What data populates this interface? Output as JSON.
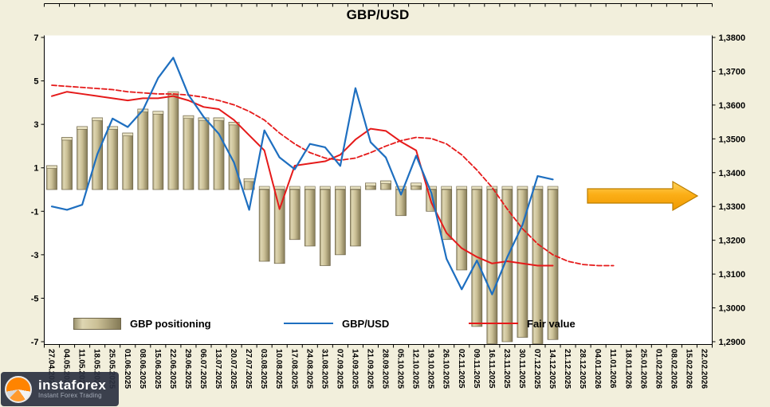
{
  "title": "GBP/USD",
  "legend": {
    "positioning": "GBP positioning",
    "price": "GBP/USD",
    "fair": "Fair value"
  },
  "watermark": {
    "brand": "instaforex",
    "tagline": "Instant Forex Trading"
  },
  "axes": {
    "left_ticks": [
      "7",
      "5",
      "3",
      "1",
      "-1",
      "-3",
      "-5",
      "-7"
    ],
    "right_ticks": [
      "1,3800",
      "1,3700",
      "1,3600",
      "1,3500",
      "1,3400",
      "1,3300",
      "1,3200",
      "1,3100",
      "1,3000",
      "1,2900"
    ]
  },
  "colors": {
    "background": "#F2EFDC",
    "plot": "#FFFFFF",
    "bar": "#CBC096",
    "bar_edge": "#6E6549",
    "price_line": "#1E6FC0",
    "fair_line": "#E51A1A",
    "arrow_fill_top": "#FFD45C",
    "arrow_fill_bottom": "#F09A00",
    "arrow_border": "#BA7D00"
  },
  "chart_data": {
    "type": "combo",
    "title": "GBP/USD",
    "categories": [
      "27.04.2025",
      "04.05.2025",
      "11.05.2025",
      "18.05.2025",
      "25.05.2025",
      "01.06.2025",
      "08.06.2025",
      "15.06.2025",
      "22.06.2025",
      "29.06.2025",
      "06.07.2025",
      "13.07.2025",
      "20.07.2025",
      "27.07.2025",
      "03.08.2025",
      "10.08.2025",
      "17.08.2025",
      "24.08.2025",
      "31.08.2025",
      "07.09.2025",
      "14.09.2025",
      "21.09.2025",
      "28.09.2025",
      "05.10.2025",
      "12.10.2025",
      "19.10.2025",
      "26.10.2025",
      "02.11.2025",
      "09.11.2025",
      "16.11.2025",
      "23.11.2025",
      "30.11.2025",
      "07.12.2025",
      "14.12.2025",
      "21.12.2025",
      "28.12.2025",
      "04.01.2026",
      "11.01.2026",
      "18.01.2026",
      "25.01.2026",
      "01.02.2026",
      "08.02.2026",
      "15.02.2026",
      "22.02.2026"
    ],
    "left_axis": {
      "min": -7,
      "max": 7,
      "tick_step": 2
    },
    "right_axis": {
      "min": 1.29,
      "max": 1.38,
      "tick_step": 0.01
    },
    "legend_position": "bottom-inside",
    "grid": false,
    "series": [
      {
        "name": "GBP positioning",
        "type": "bar",
        "axis": "left",
        "values": [
          1.1,
          2.4,
          2.9,
          3.3,
          2.9,
          2.6,
          3.7,
          3.6,
          4.5,
          3.4,
          3.3,
          3.3,
          3.1,
          0.5,
          -3.3,
          -3.4,
          -2.3,
          -2.6,
          -3.5,
          -3.0,
          -2.6,
          0.3,
          0.4,
          -1.2,
          0.3,
          -1.0,
          -2.3,
          -3.7,
          -6.3,
          -7.2,
          -7.0,
          -6.8,
          -7.1,
          -6.9,
          null,
          null,
          null,
          null,
          null,
          null,
          null,
          null,
          null,
          null
        ]
      },
      {
        "name": "GBP/USD",
        "type": "line",
        "axis": "right",
        "values": [
          1.33,
          1.329,
          1.3305,
          1.3455,
          1.356,
          1.3535,
          1.3585,
          1.368,
          1.374,
          1.363,
          1.3565,
          1.3515,
          1.343,
          1.329,
          1.3525,
          1.3445,
          1.341,
          1.3485,
          1.3475,
          1.342,
          1.365,
          1.349,
          1.3445,
          1.3335,
          1.345,
          1.334,
          1.3145,
          1.3055,
          1.314,
          1.304,
          1.315,
          1.3245,
          1.339,
          1.338,
          null,
          null,
          null,
          null,
          null,
          null,
          null,
          null,
          null,
          null
        ]
      },
      {
        "name": "Fair value",
        "type": "line",
        "axis": "left",
        "values": [
          4.3,
          4.5,
          4.4,
          4.3,
          4.2,
          4.1,
          4.2,
          4.2,
          4.3,
          4.1,
          3.8,
          3.7,
          3.2,
          2.5,
          1.8,
          -0.9,
          1.1,
          1.2,
          1.3,
          1.6,
          2.3,
          2.8,
          2.7,
          2.2,
          1.8,
          -0.6,
          -2.0,
          -2.7,
          -3.1,
          -3.4,
          -3.3,
          -3.4,
          -3.5,
          -3.5,
          null,
          null,
          null,
          null,
          null,
          null,
          null,
          null,
          null,
          null
        ]
      },
      {
        "name": "Fair value (dashed trend)",
        "type": "line",
        "style": "dashed",
        "axis": "left",
        "values": [
          4.8,
          4.75,
          4.7,
          4.65,
          4.6,
          4.5,
          4.45,
          4.4,
          4.4,
          4.35,
          4.25,
          4.1,
          3.9,
          3.6,
          3.2,
          2.6,
          2.1,
          1.7,
          1.45,
          1.35,
          1.45,
          1.7,
          2.0,
          2.25,
          2.4,
          2.35,
          2.1,
          1.6,
          0.9,
          0.1,
          -0.9,
          -1.8,
          -2.5,
          -3.0,
          -3.3,
          -3.45,
          -3.5,
          -3.5,
          null,
          null,
          null,
          null,
          null,
          null
        ]
      }
    ],
    "annotations": [
      {
        "type": "arrow-right"
      }
    ]
  }
}
